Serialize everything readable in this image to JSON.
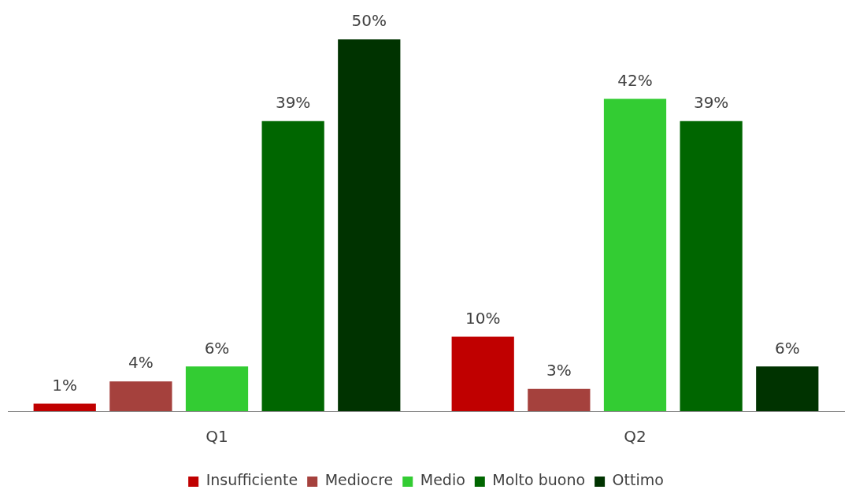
{
  "chart_data": {
    "type": "bar",
    "categories": [
      "Q1",
      "Q2"
    ],
    "legend": "bottom",
    "series": [
      {
        "name": "Insufficiente",
        "color": "#c00000",
        "values": [
          1,
          10
        ],
        "value_labels": [
          "1%",
          "10%"
        ]
      },
      {
        "name": "Mediocre",
        "color": "#a5413d",
        "values": [
          4,
          3
        ],
        "value_labels": [
          "4%",
          "3%"
        ]
      },
      {
        "name": "Medio",
        "color": "#33cc33",
        "values": [
          6,
          42
        ],
        "value_labels": [
          "6%",
          "42%"
        ]
      },
      {
        "name": "Molto buono",
        "color": "#006600",
        "values": [
          39,
          39
        ],
        "value_labels": [
          "39%",
          "39%"
        ]
      },
      {
        "name": "Ottimo",
        "color": "#003300",
        "values": [
          50,
          6
        ],
        "value_labels": [
          "50%",
          "6%"
        ]
      }
    ]
  }
}
